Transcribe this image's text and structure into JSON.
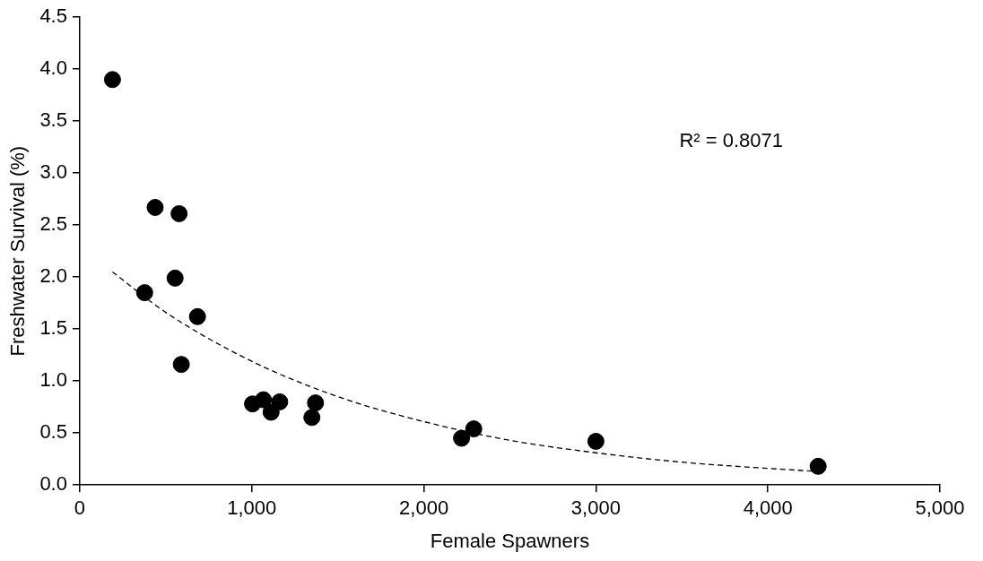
{
  "chart_data": {
    "type": "scatter",
    "xlabel": "Female Spawners",
    "ylabel": "Freshwater Survival (%)",
    "annotations": [
      "R² = 0.8071"
    ],
    "xlim": [
      0,
      5000
    ],
    "xticks": [
      {
        "value": 0,
        "label": "0"
      },
      {
        "value": 1000,
        "label": "1,000"
      },
      {
        "value": 2000,
        "label": "2,000"
      },
      {
        "value": 3000,
        "label": "3,000"
      },
      {
        "value": 4000,
        "label": "4,000"
      },
      {
        "value": 5000,
        "label": "5,000"
      }
    ],
    "ylim": [
      0,
      4.5
    ],
    "yticks": [
      {
        "value": 0,
        "label": "0.0"
      },
      {
        "value": 0.5,
        "label": "0.5"
      },
      {
        "value": 1,
        "label": "1.0"
      },
      {
        "value": 1.5,
        "label": "1.5"
      },
      {
        "value": 2,
        "label": "2.0"
      },
      {
        "value": 2.5,
        "label": "2.5"
      },
      {
        "value": 3,
        "label": "3.0"
      },
      {
        "value": 3.5,
        "label": "3.5"
      },
      {
        "value": 4,
        "label": "4.0"
      },
      {
        "value": 4.5,
        "label": "4.5"
      }
    ],
    "grid": false,
    "legend": false,
    "marker": "circle",
    "series": [
      {
        "color": "#000000",
        "x": [
          190,
          438,
          577,
          554,
          377,
          684,
          590,
          1004,
          1067,
          1112,
          1162,
          1370,
          1349,
          2219,
          2290,
          3000,
          4292
        ],
        "values": [
          3.9,
          2.67,
          2.61,
          1.99,
          1.85,
          1.62,
          1.16,
          0.78,
          0.82,
          0.7,
          0.8,
          0.79,
          0.65,
          0.45,
          0.54,
          0.42,
          0.18
        ]
      },
      {
        "type": "line",
        "color": "#000000",
        "line_style": "dashed",
        "marker": "none",
        "x": [
          190,
          500,
          1000,
          1500,
          2000,
          2500,
          3000,
          3500,
          4000,
          4292
        ],
        "values": [
          2.05,
          1.66,
          1.19,
          0.85,
          0.61,
          0.43,
          0.31,
          0.22,
          0.16,
          0.13
        ]
      }
    ]
  }
}
